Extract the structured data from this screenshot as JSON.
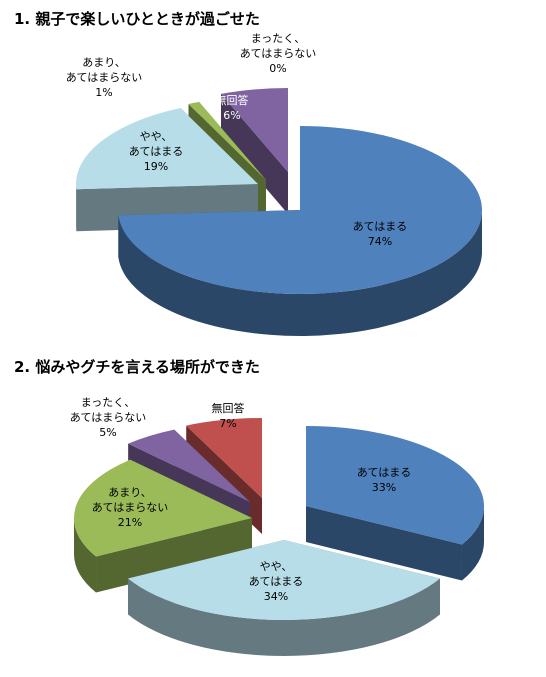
{
  "chart_data": [
    {
      "type": "pie",
      "title": "1. 親子で楽しいひとときが過ごせた",
      "slices": [
        {
          "name_lines": [
            "あてはまる"
          ],
          "value": 74,
          "label": "74%",
          "color": "#4f81bd"
        },
        {
          "name_lines": [
            "やや、",
            "あてはまる"
          ],
          "value": 19,
          "label": "19%",
          "color": "#b7dde8"
        },
        {
          "name_lines": [
            "あまり、",
            "あてはまらない"
          ],
          "value": 1,
          "label": "1%",
          "color": "#9bbb59"
        },
        {
          "name_lines": [
            "まったく、",
            "あてはまらない"
          ],
          "value": 0,
          "label": "0%",
          "color": "#8064a2"
        },
        {
          "name_lines": [
            "無回答"
          ],
          "value": 6,
          "label": "6%",
          "color": "#8064a2"
        }
      ]
    },
    {
      "type": "pie",
      "title": "2. 悩みやグチを言える場所ができた",
      "slices": [
        {
          "name_lines": [
            "あてはまる"
          ],
          "value": 33,
          "label": "33%",
          "color": "#4f81bd"
        },
        {
          "name_lines": [
            "やや、",
            "あてはまる"
          ],
          "value": 34,
          "label": "34%",
          "color": "#b7dde8"
        },
        {
          "name_lines": [
            "あまり、",
            "あてはまらない"
          ],
          "value": 21,
          "label": "21%",
          "color": "#9bbb59"
        },
        {
          "name_lines": [
            "まったく、",
            "あてはまらない"
          ],
          "value": 5,
          "label": "5%",
          "color": "#8064a2"
        },
        {
          "name_lines": [
            "無回答"
          ],
          "value": 7,
          "label": "7%",
          "color": "#c0504d"
        }
      ]
    }
  ]
}
